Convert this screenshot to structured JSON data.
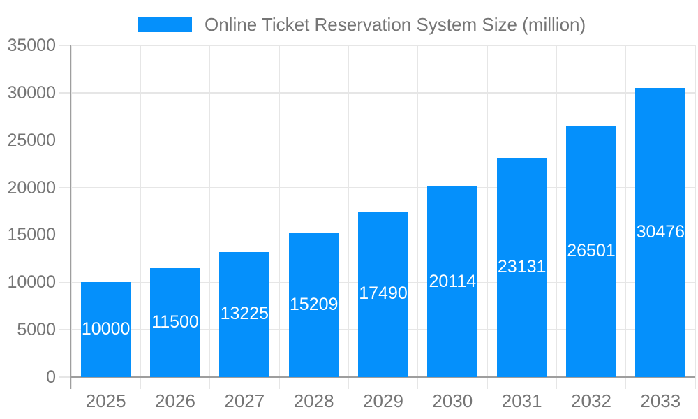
{
  "legend": {
    "label": "Online Ticket Reservation System Size (million)",
    "swatch_color": "#0590FB"
  },
  "chart_data": {
    "type": "bar",
    "title": "Online Ticket Reservation System Size (million)",
    "categories": [
      "2025",
      "2026",
      "2027",
      "2028",
      "2029",
      "2030",
      "2031",
      "2032",
      "2033"
    ],
    "values": [
      10000,
      11500,
      13225,
      15209,
      17490,
      20114,
      23131,
      26501,
      30476
    ],
    "xlabel": "",
    "ylabel": "",
    "ylim": [
      0,
      35000
    ],
    "ytick_interval": 5000,
    "ytick_labels": [
      "0",
      "5000",
      "10000",
      "15000",
      "20000",
      "25000",
      "30000",
      "35000"
    ],
    "grid": "on",
    "legend_position": "top-center",
    "bar_color": "#0590FB",
    "value_label_color": "#FFFFFF"
  },
  "colors": {
    "bar": "#0590FB",
    "grid_line": "#E6E6E6",
    "axis_line": "#9E9E9E",
    "tick_text": "#757575",
    "background": "#FFFFFF"
  }
}
